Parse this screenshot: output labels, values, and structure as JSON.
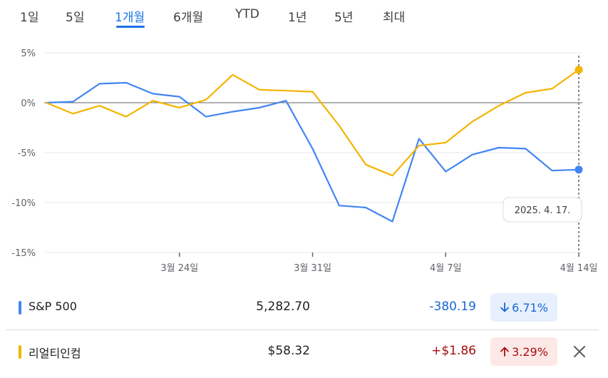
{
  "range_tabs": [
    {
      "label": "1일",
      "active": false
    },
    {
      "label": "5일",
      "active": false
    },
    {
      "label": "1개월",
      "active": true
    },
    {
      "label": "6개월",
      "active": false
    },
    {
      "label": "YTD",
      "active": false
    },
    {
      "label": "1년",
      "active": false
    },
    {
      "label": "5년",
      "active": false
    },
    {
      "label": "최대",
      "active": false
    }
  ],
  "chart_data": {
    "type": "line",
    "y_unit": "%",
    "ylim": [
      -15,
      5
    ],
    "y_ticks": [
      5,
      0,
      -5,
      -10,
      -15
    ],
    "y_tick_labels": [
      "5%",
      "0%",
      "-5%",
      "-10%",
      "-15%"
    ],
    "x_ticks": [
      {
        "label": "3월 24일",
        "date": "2025-03-24"
      },
      {
        "label": "3월 31일",
        "date": "2025-03-31"
      },
      {
        "label": "4월 7일",
        "date": "2025-04-07"
      },
      {
        "label": "4월 14일",
        "date": "2025-04-14"
      }
    ],
    "dates": [
      "2025-03-17",
      "2025-03-18",
      "2025-03-19",
      "2025-03-20",
      "2025-03-21",
      "2025-03-24",
      "2025-03-25",
      "2025-03-26",
      "2025-03-27",
      "2025-03-28",
      "2025-03-31",
      "2025-04-01",
      "2025-04-02",
      "2025-04-03",
      "2025-04-04",
      "2025-04-07",
      "2025-04-08",
      "2025-04-09",
      "2025-04-10",
      "2025-04-11",
      "2025-04-14",
      "2025-04-15",
      "2025-04-16",
      "2025-04-17"
    ],
    "series": [
      {
        "name": "S&P 500",
        "color": "#4285f4",
        "values": [
          0,
          0.1,
          1.9,
          2.0,
          0.9,
          0.6,
          -1.4,
          -0.9,
          -0.5,
          0.2,
          -4.6,
          -10.3,
          -10.5,
          -11.9,
          -3.6,
          -6.9,
          -5.2,
          -4.5,
          -4.6,
          -6.8,
          -6.7,
          null,
          null,
          null
        ]
      },
      {
        "name": "리얼티인컴",
        "color": "#f4b400",
        "values": [
          0,
          -1.1,
          -0.3,
          -1.4,
          0.2,
          -0.5,
          0.3,
          2.8,
          1.3,
          1.2,
          1.1,
          -2.3,
          -6.2,
          -7.3,
          -4.3,
          -4.0,
          -1.9,
          -0.3,
          1.0,
          1.4,
          3.3,
          null,
          null,
          null
        ]
      }
    ],
    "hover_label": "2025. 4. 17.",
    "grid": true
  },
  "stocks": [
    {
      "name": "S&P 500",
      "color": "#4285f4",
      "price": "5,282.70",
      "change": "-380.19",
      "percent": "6.71%",
      "direction": "down",
      "change_color": "#1967d2",
      "badge_bg": "#e8f0fe",
      "badge_color": "#1967d2",
      "removable": false
    },
    {
      "name": "리얼티인컴",
      "color": "#f4b400",
      "price": "$58.32",
      "change": "+$1.86",
      "percent": "3.29%",
      "direction": "up",
      "change_color": "#a50e0e",
      "badge_bg": "#fce8e6",
      "badge_color": "#a50e0e",
      "removable": true
    }
  ]
}
